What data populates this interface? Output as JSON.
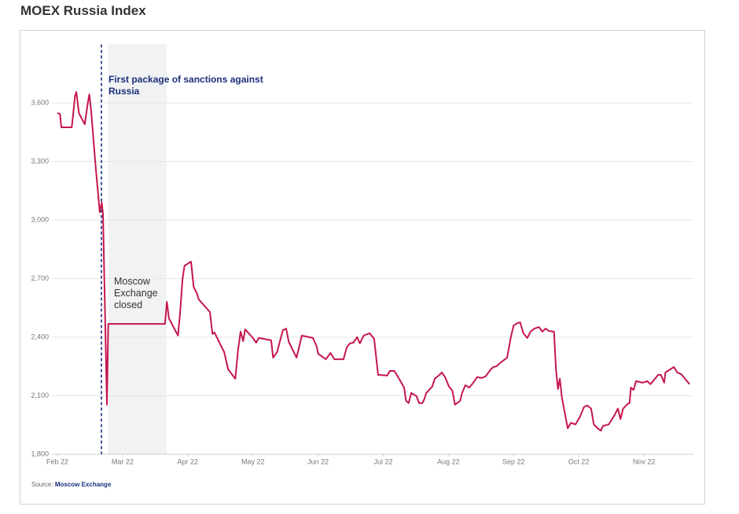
{
  "chart_data": {
    "type": "line",
    "title": "MOEX Russia Index",
    "source_label": "Source:",
    "source": "Moscow Exchange",
    "color": "#c5174b",
    "grid": true,
    "x": [
      0,
      0.04,
      0.06,
      0.22,
      0.27,
      0.29,
      0.33,
      0.42,
      0.47,
      0.49,
      0.52,
      0.59,
      0.65,
      0.68,
      0.7,
      0.76,
      0.78,
      1.65,
      1.68,
      1.71,
      1.85,
      1.88,
      1.92,
      1.95,
      2.05,
      2.09,
      2.14,
      2.17,
      2.34,
      2.38,
      2.41,
      2.51,
      2.56,
      2.62,
      2.73,
      2.77,
      2.81,
      2.85,
      2.88,
      3.0,
      3.05,
      3.09,
      3.28,
      3.31,
      3.37,
      3.46,
      3.51,
      3.55,
      3.67,
      3.75,
      3.92,
      3.98,
      4.0,
      4.12,
      4.19,
      4.25,
      4.39,
      4.44,
      4.49,
      4.54,
      4.6,
      4.64,
      4.7,
      4.79,
      4.86,
      4.92,
      5.06,
      5.1,
      5.17,
      5.25,
      5.32,
      5.35,
      5.39,
      5.43,
      5.51,
      5.55,
      5.6,
      5.63,
      5.66,
      5.75,
      5.79,
      5.85,
      5.9,
      5.95,
      6.01,
      6.06,
      6.1,
      6.18,
      6.21,
      6.26,
      6.32,
      6.37,
      6.44,
      6.51,
      6.57,
      6.65,
      6.69,
      6.74,
      6.79,
      6.9,
      6.96,
      7.0,
      7.06,
      7.1,
      7.15,
      7.21,
      7.26,
      7.32,
      7.39,
      7.44,
      7.49,
      7.54,
      7.62,
      7.65,
      7.68,
      7.71,
      7.74,
      7.83,
      7.88,
      7.95,
      8.02,
      8.08,
      8.13,
      8.19,
      8.23,
      8.29,
      8.34,
      8.37,
      8.46,
      8.55,
      8.6,
      8.64,
      8.68,
      8.75,
      8.78,
      8.8,
      8.84,
      8.88,
      8.98,
      9.05,
      9.1,
      9.22,
      9.26,
      9.31,
      9.33,
      9.46,
      9.51,
      9.57,
      9.63,
      9.7
    ],
    "values": [
      3548,
      3544,
      3475,
      3475,
      3636,
      3656,
      3548,
      3491,
      3608,
      3644,
      3552,
      3262,
      3040,
      3090,
      3032,
      2054,
      2468,
      2468,
      2581,
      2497,
      2408,
      2517,
      2698,
      2766,
      2787,
      2658,
      2625,
      2593,
      2529,
      2416,
      2424,
      2356,
      2323,
      2235,
      2187,
      2327,
      2428,
      2380,
      2440,
      2396,
      2372,
      2396,
      2384,
      2295,
      2323,
      2436,
      2444,
      2376,
      2295,
      2408,
      2396,
      2352,
      2315,
      2287,
      2319,
      2287,
      2287,
      2348,
      2368,
      2372,
      2400,
      2368,
      2408,
      2420,
      2392,
      2207,
      2203,
      2227,
      2227,
      2183,
      2142,
      2074,
      2062,
      2114,
      2098,
      2062,
      2062,
      2082,
      2114,
      2146,
      2187,
      2203,
      2219,
      2195,
      2146,
      2126,
      2054,
      2074,
      2114,
      2154,
      2142,
      2162,
      2195,
      2191,
      2199,
      2235,
      2247,
      2251,
      2267,
      2295,
      2404,
      2460,
      2472,
      2476,
      2420,
      2396,
      2428,
      2444,
      2452,
      2428,
      2444,
      2432,
      2428,
      2235,
      2134,
      2187,
      2094,
      1933,
      1961,
      1953,
      1993,
      2042,
      2050,
      2034,
      1953,
      1933,
      1921,
      1945,
      1953,
      2001,
      2034,
      1981,
      2034,
      2058,
      2062,
      2142,
      2130,
      2175,
      2167,
      2175,
      2159,
      2207,
      2207,
      2167,
      2219,
      2247,
      2219,
      2211,
      2187,
      2159
    ],
    "xlim": [
      -0.157,
      9.759
    ],
    "xticks": [
      {
        "value": 0,
        "label": "Feb 22"
      },
      {
        "value": 1,
        "label": "Mar 22"
      },
      {
        "value": 2,
        "label": "Apr 22"
      },
      {
        "value": 3,
        "label": "May 22"
      },
      {
        "value": 4,
        "label": "Jun 22"
      },
      {
        "value": 5,
        "label": "Jul 22"
      },
      {
        "value": 6,
        "label": "Aug 22"
      },
      {
        "value": 7,
        "label": "Sep 22"
      },
      {
        "value": 8,
        "label": "Oct 22"
      },
      {
        "value": 9,
        "label": "Nov 22"
      }
    ],
    "ylim": [
      1800,
      3900
    ],
    "yticks": [
      {
        "value": 1800,
        "label": "1,800"
      },
      {
        "value": 2100,
        "label": "2,100"
      },
      {
        "value": 2400,
        "label": "2,400"
      },
      {
        "value": 2700,
        "label": "2,700"
      },
      {
        "value": 3000,
        "label": "3,000"
      },
      {
        "value": 3300,
        "label": "3,300"
      },
      {
        "value": 3600,
        "label": "3,600"
      }
    ],
    "annotations": [
      {
        "text": "First package of sanctions against Russia",
        "x": 0.675
      },
      {
        "text": "Moscow Exchange closed",
        "x_range": [
          0.78,
          1.68
        ]
      }
    ]
  }
}
